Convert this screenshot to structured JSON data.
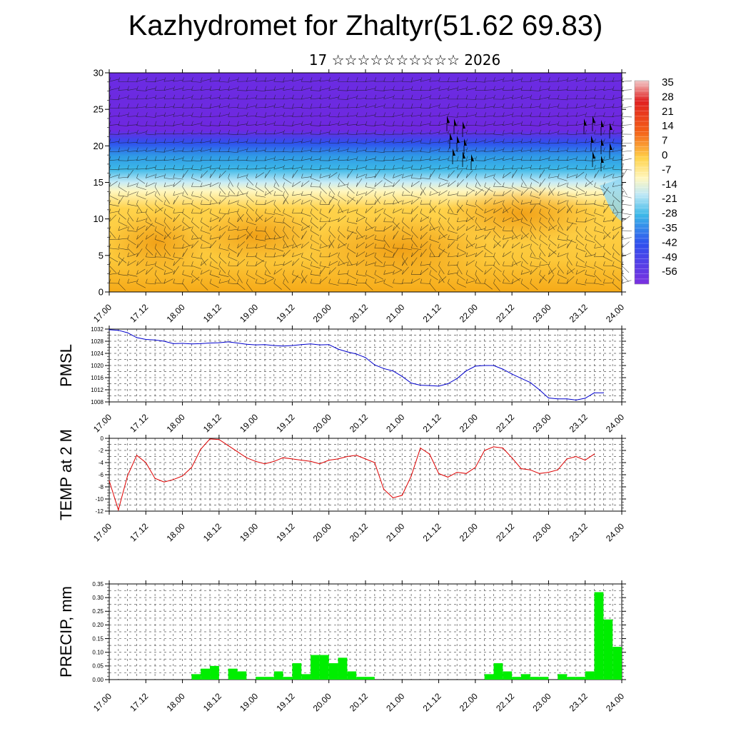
{
  "page": {
    "title": "Kazhydromet for Zhaltyr(51.62 69.83)",
    "subtitle": "17 ☆☆☆☆☆☆☆☆☆☆ 2026"
  },
  "x_ticks": [
    "17.00",
    "17.12",
    "18.00",
    "18.12",
    "19.00",
    "19.12",
    "20.00",
    "20.12",
    "21.00",
    "21.12",
    "22.00",
    "22.12",
    "23.00",
    "23.12",
    "24.00"
  ],
  "chart_data": [
    {
      "id": "cross_section",
      "type": "heatmap",
      "title": "",
      "xlabel": "",
      "ylabel": "",
      "xlim": [
        0,
        7
      ],
      "ylim": [
        0,
        30
      ],
      "y_ticks": [
        "0",
        "5",
        "10",
        "15",
        "20",
        "25",
        "30"
      ],
      "colorbar_labels": [
        "35",
        "28",
        "21",
        "14",
        "7",
        "0",
        "-7",
        "-14",
        "-21",
        "-28",
        "-35",
        "-42",
        "-49",
        "-56"
      ],
      "colors": {
        "violet": "#6f28e0",
        "blue": "#2f50ee",
        "cyan": "#3cb8e8",
        "pale": "#fff7c0",
        "yellow": "#ffd24a",
        "orange": "#f6aa18",
        "red": "#e02020"
      },
      "layers": [
        {
          "name": "upper violet",
          "from": 22,
          "to": 30,
          "value": -56
        },
        {
          "name": "blue",
          "from": 19,
          "to": 22,
          "value": -42
        },
        {
          "name": "cyan",
          "from": 16,
          "to": 19,
          "value": -25
        },
        {
          "name": "pale",
          "from": 14,
          "to": 16,
          "value": -12
        },
        {
          "name": "yellow",
          "from": 0,
          "to": 14,
          "value": -5
        }
      ],
      "series": [
        {
          "name": "wind barbs",
          "values": []
        }
      ]
    },
    {
      "id": "pmsl",
      "type": "line",
      "title": "",
      "xlabel": "",
      "ylabel": "PMSL",
      "ylim": [
        1008,
        1032
      ],
      "y_ticks": [
        "1008",
        "1012",
        "1016",
        "1020",
        "1024",
        "1028",
        "1032"
      ],
      "color": "#0000cc",
      "x": [
        0,
        0.125,
        0.25,
        0.375,
        0.5,
        0.625,
        0.75,
        0.875,
        1,
        1.125,
        1.25,
        1.375,
        1.5,
        1.625,
        1.75,
        1.875,
        2,
        2.125,
        2.25,
        2.375,
        2.5,
        2.625,
        2.75,
        2.875,
        3,
        3.125,
        3.25,
        3.375,
        3.5,
        3.625,
        3.75,
        3.875,
        4,
        4.125,
        4.25,
        4.375,
        4.5,
        4.625,
        4.75,
        4.875,
        5,
        5.125,
        5.25,
        5.375,
        5.5,
        5.625,
        5.75,
        5.875,
        6,
        6.125,
        6.25,
        6.375,
        6.5,
        6.625,
        6.75
      ],
      "values": [
        1031.8,
        1031.6,
        1030.8,
        1029.2,
        1028.6,
        1028.4,
        1028.0,
        1027.2,
        1027.3,
        1027.1,
        1027.2,
        1027.4,
        1027.5,
        1027.8,
        1027.4,
        1027.0,
        1026.8,
        1026.9,
        1026.6,
        1026.4,
        1026.6,
        1026.9,
        1027.1,
        1026.8,
        1026.9,
        1025.4,
        1024.5,
        1023.8,
        1022.6,
        1020.2,
        1019.0,
        1018.2,
        1016.4,
        1014.2,
        1013.5,
        1013.4,
        1013.2,
        1014.0,
        1015.7,
        1018.2,
        1019.8,
        1020.0,
        1020.0,
        1018.8,
        1017.2,
        1015.8,
        1014.4,
        1012.0,
        1009.3,
        1009.0,
        1009.0,
        1008.6,
        1009.2,
        1011.0,
        1011.0
      ]
    },
    {
      "id": "temp2m",
      "type": "line",
      "title": "",
      "xlabel": "",
      "ylabel": "TEMP at 2 M",
      "ylim": [
        -12,
        0
      ],
      "y_ticks": [
        "-12",
        "-10",
        "-8",
        "-6",
        "-4",
        "-2",
        "0"
      ],
      "color": "#dd0000",
      "x": [
        0,
        0.125,
        0.25,
        0.375,
        0.5,
        0.625,
        0.75,
        0.875,
        1,
        1.125,
        1.25,
        1.375,
        1.5,
        1.625,
        1.75,
        1.875,
        2,
        2.125,
        2.25,
        2.375,
        2.5,
        2.625,
        2.75,
        2.875,
        3,
        3.125,
        3.25,
        3.375,
        3.5,
        3.625,
        3.75,
        3.875,
        4,
        4.125,
        4.25,
        4.375,
        4.5,
        4.625,
        4.75,
        4.875,
        5,
        5.125,
        5.25,
        5.375,
        5.5,
        5.625,
        5.75,
        5.875,
        6,
        6.125,
        6.25,
        6.375,
        6.5,
        6.625
      ],
      "values": [
        -7.0,
        -11.8,
        -6.2,
        -2.8,
        -4.0,
        -6.6,
        -7.2,
        -6.8,
        -6.2,
        -4.8,
        -1.8,
        -0.1,
        -0.2,
        -1.2,
        -2.2,
        -3.2,
        -3.8,
        -4.2,
        -3.8,
        -3.2,
        -3.4,
        -3.6,
        -3.8,
        -4.2,
        -3.6,
        -3.4,
        -3.0,
        -2.8,
        -3.4,
        -4.0,
        -8.4,
        -9.8,
        -9.4,
        -6.2,
        -1.6,
        -2.6,
        -5.8,
        -6.4,
        -5.6,
        -5.8,
        -4.8,
        -2.0,
        -1.4,
        -1.6,
        -3.2,
        -5.0,
        -5.2,
        -5.8,
        -5.6,
        -5.2,
        -3.4,
        -3.0,
        -3.6,
        -2.6
      ]
    },
    {
      "id": "precip",
      "type": "bar",
      "title": "",
      "xlabel": "",
      "ylabel": "PRECIP, mm",
      "ylim": [
        0,
        0.35
      ],
      "y_ticks": [
        "0.00",
        "0.05",
        "0.10",
        "0.15",
        "0.20",
        "0.25",
        "0.30",
        "0.35"
      ],
      "color": "#00ee00",
      "bin_width": 0.125,
      "x": [
        1.125,
        1.25,
        1.375,
        1.625,
        1.75,
        2.0,
        2.125,
        2.25,
        2.375,
        2.5,
        2.625,
        2.75,
        2.875,
        3.0,
        3.125,
        3.25,
        3.375,
        3.5,
        5.125,
        5.25,
        5.375,
        5.5,
        5.625,
        5.75,
        5.875,
        6.125,
        6.25,
        6.375,
        6.5,
        6.625,
        6.75,
        6.875
      ],
      "values": [
        0.02,
        0.04,
        0.05,
        0.04,
        0.03,
        0.01,
        0.01,
        0.03,
        0.01,
        0.06,
        0.02,
        0.09,
        0.09,
        0.06,
        0.08,
        0.03,
        0.01,
        0.01,
        0.02,
        0.06,
        0.03,
        0.01,
        0.02,
        0.01,
        0.01,
        0.02,
        0.01,
        0.01,
        0.03,
        0.32,
        0.22,
        0.12
      ]
    }
  ]
}
